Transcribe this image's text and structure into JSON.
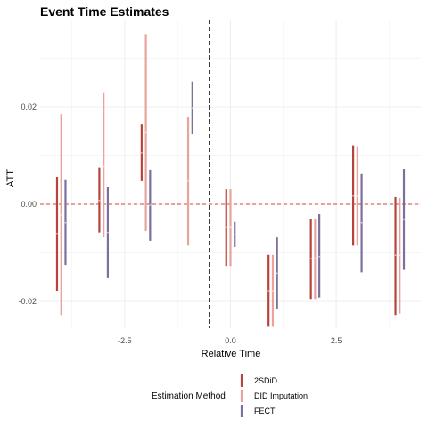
{
  "chart_data": {
    "type": "errorbar",
    "title": "Event Time Estimates",
    "xlabel": "Relative Time",
    "ylabel": "ATT",
    "xlim": [
      -4.5,
      4.5
    ],
    "ylim": [
      -0.0255,
      0.038
    ],
    "x_ticks": [
      -2.5,
      0.0,
      2.5
    ],
    "x_tick_labels": [
      "-2.5",
      "0.0",
      "2.5"
    ],
    "y_ticks": [
      -0.02,
      0.0,
      0.02
    ],
    "y_tick_labels": [
      "-0.02",
      "0.00",
      "0.02"
    ],
    "grid": true,
    "reference_lines": {
      "horizontal_zero": {
        "value": 0,
        "style": "dashed",
        "color": "#d4463c"
      },
      "vertical_treatment": {
        "value": -0.5,
        "style": "dashed",
        "color": "#000000"
      }
    },
    "legend": {
      "title": "Estimation Method",
      "placement": "bottom"
    },
    "series": [
      {
        "name": "2SDiD",
        "color": "#b5453c",
        "dodge": -0.1,
        "points": [
          {
            "x": -4,
            "estimate": -0.006,
            "low": -0.0178,
            "high": 0.0057
          },
          {
            "x": -3,
            "estimate": 0.0008,
            "low": -0.0058,
            "high": 0.0076
          },
          {
            "x": -2,
            "estimate": 0.0105,
            "low": 0.0048,
            "high": 0.0165
          },
          {
            "x": 0,
            "estimate": -0.0048,
            "low": -0.0127,
            "high": 0.0031
          },
          {
            "x": 1,
            "estimate": -0.0178,
            "low": -0.0252,
            "high": -0.0104
          },
          {
            "x": 2,
            "estimate": -0.0112,
            "low": -0.0195,
            "high": -0.0031
          },
          {
            "x": 3,
            "estimate": 0.0017,
            "low": -0.0085,
            "high": 0.012
          },
          {
            "x": 4,
            "estimate": -0.0105,
            "low": -0.0228,
            "high": 0.0015
          }
        ]
      },
      {
        "name": "DID Imputation",
        "color": "#e8a39c",
        "dodge": 0.0,
        "points": [
          {
            "x": -4,
            "estimate": -0.0022,
            "low": -0.0228,
            "high": 0.0185
          },
          {
            "x": -3,
            "estimate": 0.0078,
            "low": -0.0068,
            "high": 0.023
          },
          {
            "x": -2,
            "estimate": 0.0148,
            "low": -0.0055,
            "high": 0.035
          },
          {
            "x": -1,
            "estimate": 0.0048,
            "low": -0.0085,
            "high": 0.018
          },
          {
            "x": 0,
            "estimate": -0.0048,
            "low": -0.0127,
            "high": 0.0031
          },
          {
            "x": 1,
            "estimate": -0.0178,
            "low": -0.0252,
            "high": -0.0104
          },
          {
            "x": 2,
            "estimate": -0.0112,
            "low": -0.0195,
            "high": -0.0031
          },
          {
            "x": 3,
            "estimate": 0.0017,
            "low": -0.0085,
            "high": 0.0118
          },
          {
            "x": 4,
            "estimate": -0.0105,
            "low": -0.0225,
            "high": 0.0013
          }
        ]
      },
      {
        "name": "FECT",
        "color": "#7b6f9e",
        "dodge": 0.1,
        "points": [
          {
            "x": -4,
            "estimate": -0.0038,
            "low": -0.0125,
            "high": 0.005
          },
          {
            "x": -3,
            "estimate": -0.0058,
            "low": -0.0152,
            "high": 0.0035
          },
          {
            "x": -2,
            "estimate": -0.0002,
            "low": -0.0075,
            "high": 0.007
          },
          {
            "x": -1,
            "estimate": 0.0198,
            "low": 0.0145,
            "high": 0.0252
          },
          {
            "x": 0,
            "estimate": -0.0062,
            "low": -0.0088,
            "high": -0.0036
          },
          {
            "x": 1,
            "estimate": -0.0142,
            "low": -0.0215,
            "high": -0.0068
          },
          {
            "x": 2,
            "estimate": -0.0108,
            "low": -0.0192,
            "high": -0.002
          },
          {
            "x": 3,
            "estimate": -0.0038,
            "low": -0.014,
            "high": 0.0063
          },
          {
            "x": 4,
            "estimate": -0.0032,
            "low": -0.0135,
            "high": 0.0072
          }
        ]
      }
    ]
  }
}
